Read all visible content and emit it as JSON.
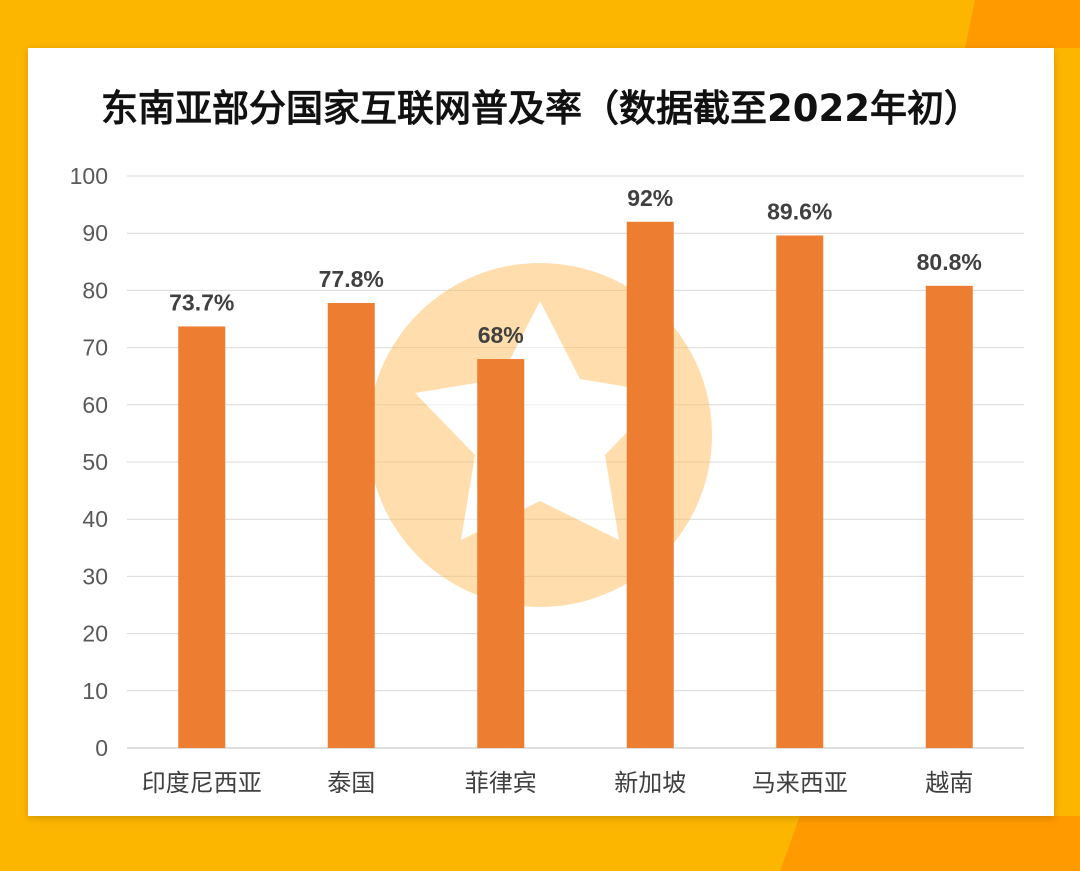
{
  "chart_data": {
    "type": "bar",
    "title": "东南亚部分国家互联网普及率（数据截至2022年初）",
    "categories": [
      "印度尼西亚",
      "泰国",
      "菲律宾",
      "新加坡",
      "马来西亚",
      "越南"
    ],
    "values": [
      73.7,
      77.8,
      68,
      92,
      89.6,
      80.8
    ],
    "data_labels": [
      "73.7%",
      "77.8%",
      "68%",
      "92%",
      "89.6%",
      "80.8%"
    ],
    "y_ticks": [
      "0",
      "10",
      "20",
      "30",
      "40",
      "50",
      "60",
      "70",
      "80",
      "90",
      "100"
    ],
    "ylim": [
      0,
      100
    ],
    "xlabel": "",
    "ylabel": "",
    "grid": true,
    "legend": "none",
    "bar_color": "#ED7D31"
  },
  "colors": {
    "background": "#FDB600",
    "accent": "#FF9A00",
    "watermark": "#FFC36B"
  },
  "watermark": {
    "icon": "star-in-circle-icon"
  }
}
